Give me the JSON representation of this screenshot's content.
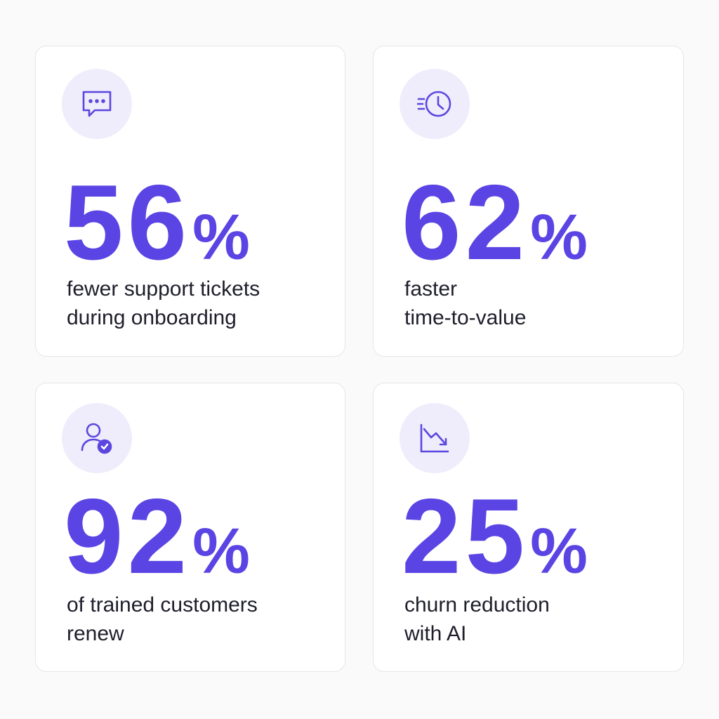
{
  "cards": [
    {
      "value": 56,
      "unit": "%",
      "lines": [
        "fewer support tickets",
        "during onboarding"
      ]
    },
    {
      "value": 62,
      "unit": "%",
      "lines": [
        "faster",
        "time-to-value"
      ]
    },
    {
      "value": 92,
      "unit": "%",
      "lines": [
        "of trained customers",
        "renew"
      ]
    },
    {
      "value": 25,
      "unit": "%",
      "lines": [
        "churn reduction",
        "with AI"
      ]
    }
  ]
}
